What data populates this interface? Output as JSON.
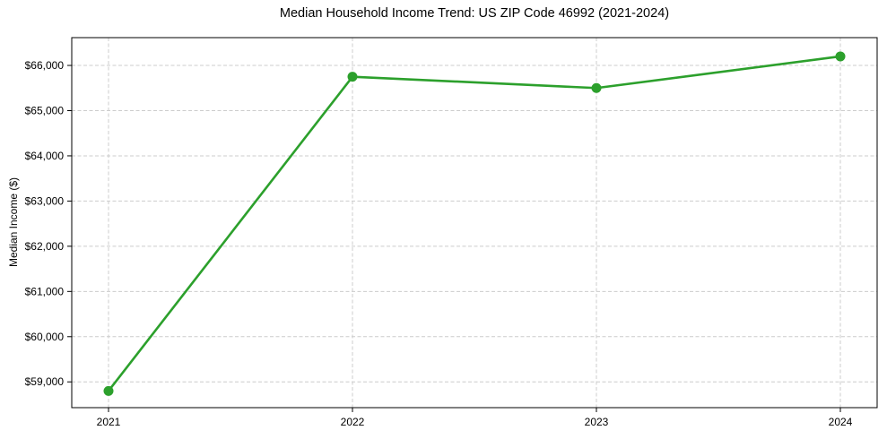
{
  "chart": {
    "title": "Median Household Income Trend: US ZIP Code 46992 (2021-2024)",
    "ylabel": "Median Income ($)"
  },
  "chart_data": {
    "type": "line",
    "title": "Median Household Income Trend: US ZIP Code 46992 (2021-2024)",
    "xlabel": "",
    "ylabel": "Median Income ($)",
    "categories": [
      "2021",
      "2022",
      "2023",
      "2024"
    ],
    "values": [
      58800,
      65750,
      65500,
      66200
    ],
    "ylim": [
      58430,
      66615
    ],
    "yticks": [
      59000,
      60000,
      61000,
      62000,
      63000,
      64000,
      65000,
      66000
    ],
    "ytick_labels": [
      "$59,000",
      "$60,000",
      "$61,000",
      "$62,000",
      "$63,000",
      "$64,000",
      "$65,000",
      "$66,000"
    ],
    "grid": true,
    "grid_axis": "both",
    "grid_style": "dashed",
    "legend_position": "none",
    "line_color": "#2ca02c",
    "marker": "circle",
    "marker_color": "#2ca02c",
    "grid_color": "#cccccc",
    "axis_color": "#000000",
    "background": "#ffffff"
  }
}
